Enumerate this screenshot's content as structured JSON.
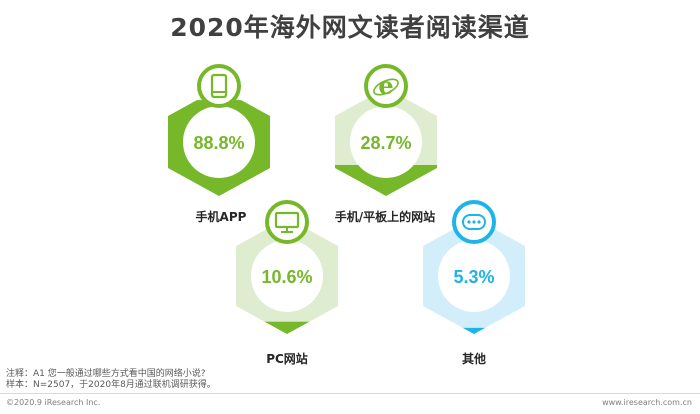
{
  "title": "2020年海外网文读者阅读渠道",
  "chart_data": {
    "type": "bar",
    "unit": "%",
    "categories": [
      "手机APP",
      "手机/平板上的网站",
      "PC网站",
      "其他"
    ],
    "values": [
      88.8,
      28.7,
      10.6,
      5.3
    ],
    "value_labels": [
      "88.8%",
      "28.7%",
      "10.6%",
      "5.3%"
    ],
    "icons": [
      "tablet-icon",
      "browser-e-icon",
      "monitor-icon",
      "more-dots-icon"
    ],
    "colors": {
      "green_dark": "#76b82a",
      "green_light": "#deedd0",
      "blue_dark": "#1fb4e8",
      "blue_light": "#d2eefa"
    }
  },
  "footer": {
    "note": "注释：A1 您一般通过哪些方式看中国的网络小说?",
    "sample": "样本：N=2507，于2020年8月通过联机调研获得。",
    "copyright": "©2020.9 iResearch Inc.",
    "website": "www.iresearch.com.cn"
  }
}
